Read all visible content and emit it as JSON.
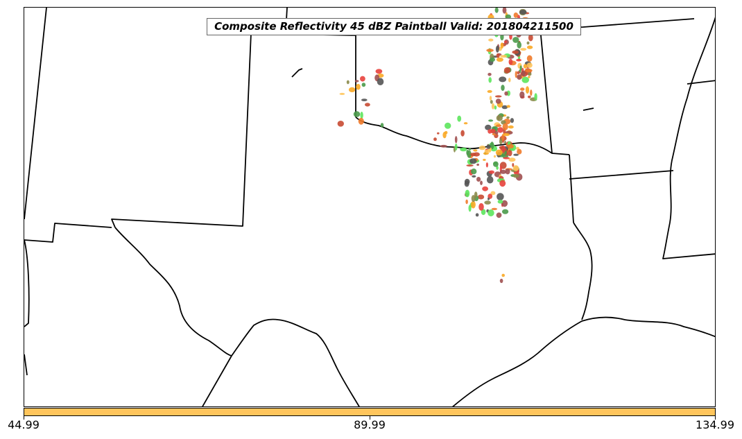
{
  "title": "Composite Reflectivity 45 dBZ Paintball Valid: 201804211500",
  "colorbar": {
    "color": "#ffc55c",
    "ticks": [
      "44.99",
      "89.99",
      "134.99"
    ]
  },
  "member_colors": [
    "#e8413c",
    "#f07a2a",
    "#f9a825",
    "#ffc55c",
    "#5ce65c",
    "#4a9a4a",
    "#8a8a4a",
    "#a05050",
    "#555555",
    "#c84a32"
  ]
}
